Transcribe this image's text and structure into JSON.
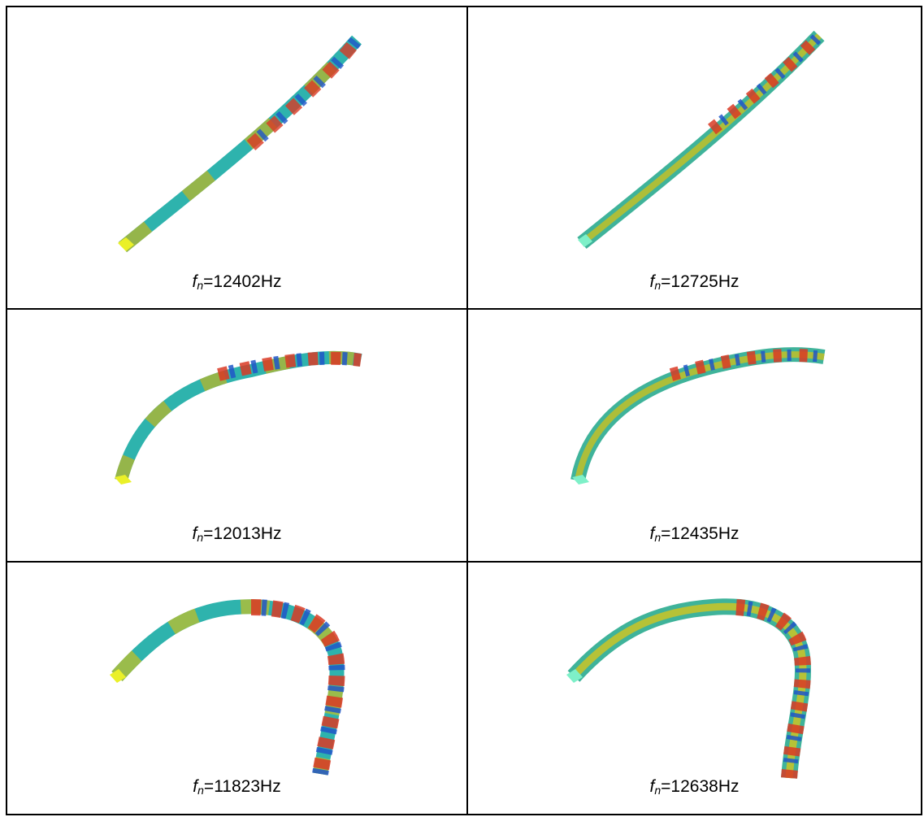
{
  "figure": {
    "cells": [
      {
        "id": "a",
        "symbol": "f",
        "subscript": "n",
        "equals": "=",
        "value": "12402Hz"
      },
      {
        "id": "b",
        "symbol": "f",
        "subscript": "n",
        "equals": "=",
        "value": "12725Hz"
      },
      {
        "id": "c",
        "symbol": "f",
        "subscript": "n",
        "equals": "=",
        "value": "12013Hz"
      },
      {
        "id": "d",
        "symbol": "f",
        "subscript": "n",
        "equals": "=",
        "value": "12435Hz"
      },
      {
        "id": "e",
        "symbol": "f",
        "subscript": "n",
        "equals": "=",
        "value": "11823Hz"
      },
      {
        "id": "f",
        "symbol": "f",
        "subscript": "n",
        "equals": "=",
        "value": "12638Hz"
      }
    ]
  }
}
